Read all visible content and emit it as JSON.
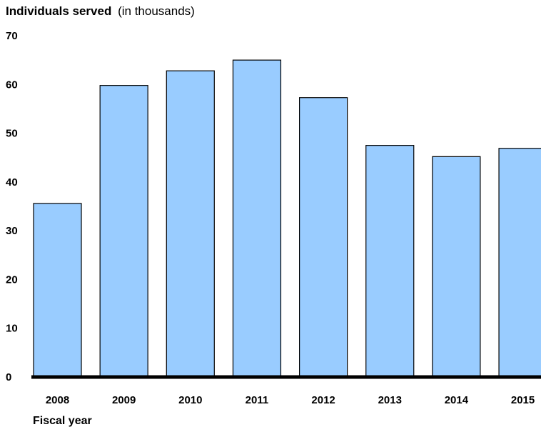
{
  "chart_data": {
    "type": "bar",
    "ylabel": "Individuals served",
    "ylabel_unit": "(in thousands)",
    "xlabel": "Fiscal year",
    "categories": [
      "2008",
      "2009",
      "2010",
      "2011",
      "2012",
      "2013",
      "2014",
      "2015"
    ],
    "values": [
      35.6,
      59.8,
      62.8,
      65.0,
      57.3,
      47.5,
      45.2,
      46.9
    ],
    "ylim": [
      0,
      70
    ],
    "yticks": [
      0,
      10,
      20,
      30,
      40,
      50,
      60,
      70
    ],
    "grid": false,
    "legend": "none",
    "colors": {
      "bar": "#99ccff",
      "bar_stroke": "#000000",
      "axis": "#000000"
    }
  }
}
